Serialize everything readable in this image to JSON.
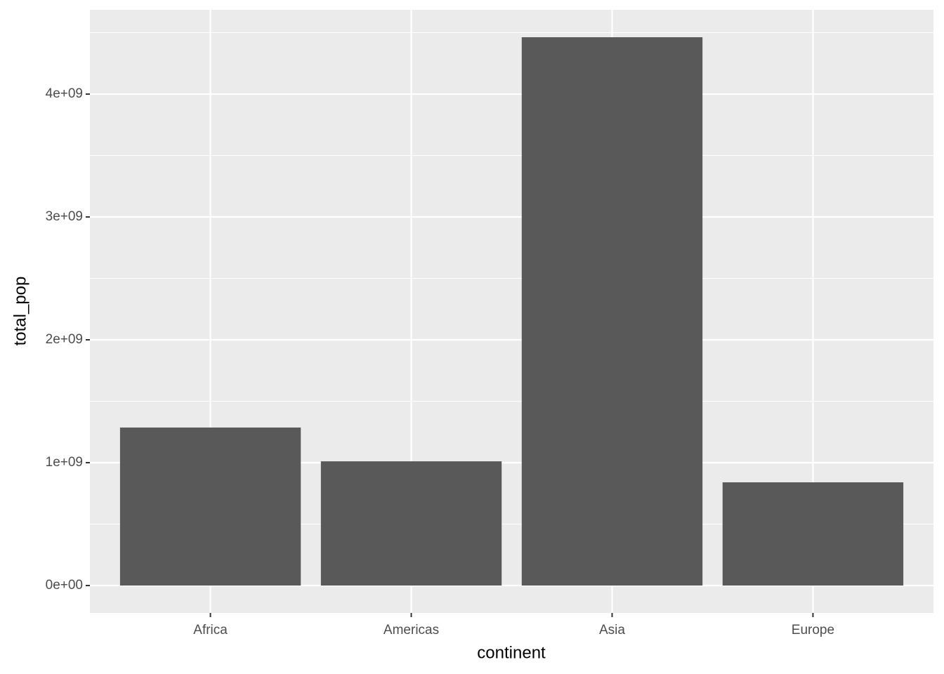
{
  "chart_data": {
    "type": "bar",
    "x_label": "continent",
    "y_label": "total_pop",
    "categories": [
      "Africa",
      "Americas",
      "Asia",
      "Europe"
    ],
    "values": [
      1286000000,
      1011000000,
      4463000000,
      840000000
    ],
    "color": "#595959",
    "ylim": [
      -223000000,
      4686000000
    ],
    "yticks": [
      {
        "value": 0,
        "label": "0e+00"
      },
      {
        "value": 1000000000,
        "label": "1e+09"
      },
      {
        "value": 2000000000,
        "label": "2e+09"
      },
      {
        "value": 3000000000,
        "label": "3e+09"
      },
      {
        "value": 4000000000,
        "label": "4e+09"
      }
    ],
    "grid": true
  }
}
